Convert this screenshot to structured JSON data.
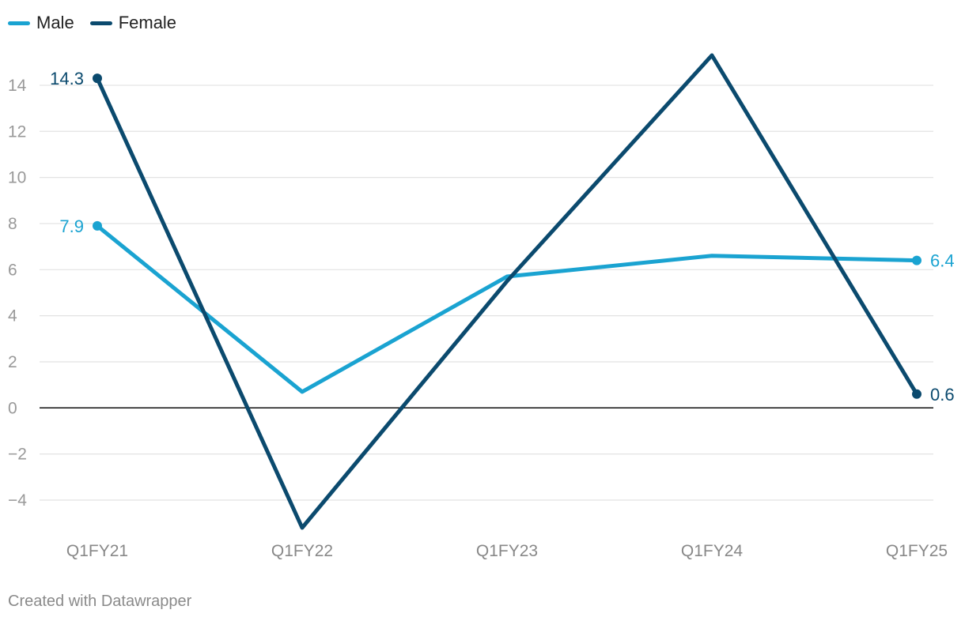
{
  "chart_data": {
    "type": "line",
    "categories": [
      "Q1FY21",
      "Q1FY22",
      "Q1FY23",
      "Q1FY24",
      "Q1FY25"
    ],
    "series": [
      {
        "name": "Male",
        "color": "#1aa3d1",
        "values": [
          7.9,
          0.7,
          5.7,
          6.6,
          6.4
        ]
      },
      {
        "name": "Female",
        "color": "#0b4a6e",
        "values": [
          14.3,
          -5.2,
          5.5,
          15.3,
          0.6
        ]
      }
    ],
    "end_labels": [
      {
        "series": 0,
        "index": 0,
        "text": "7.9"
      },
      {
        "series": 0,
        "index": 4,
        "text": "6.4"
      },
      {
        "series": 1,
        "index": 0,
        "text": "14.3"
      },
      {
        "series": 1,
        "index": 4,
        "text": "0.6"
      }
    ],
    "ylim": [
      -5.2,
      15.3
    ],
    "yticks": [
      -4,
      -2,
      0,
      2,
      4,
      6,
      8,
      10,
      12,
      14
    ],
    "ytick_labels": [
      "−4",
      "−2",
      "0",
      "2",
      "4",
      "6",
      "8",
      "10",
      "12",
      "14"
    ],
    "grid": true,
    "legend_position": "top-left"
  },
  "footer": "Created with Datawrapper"
}
